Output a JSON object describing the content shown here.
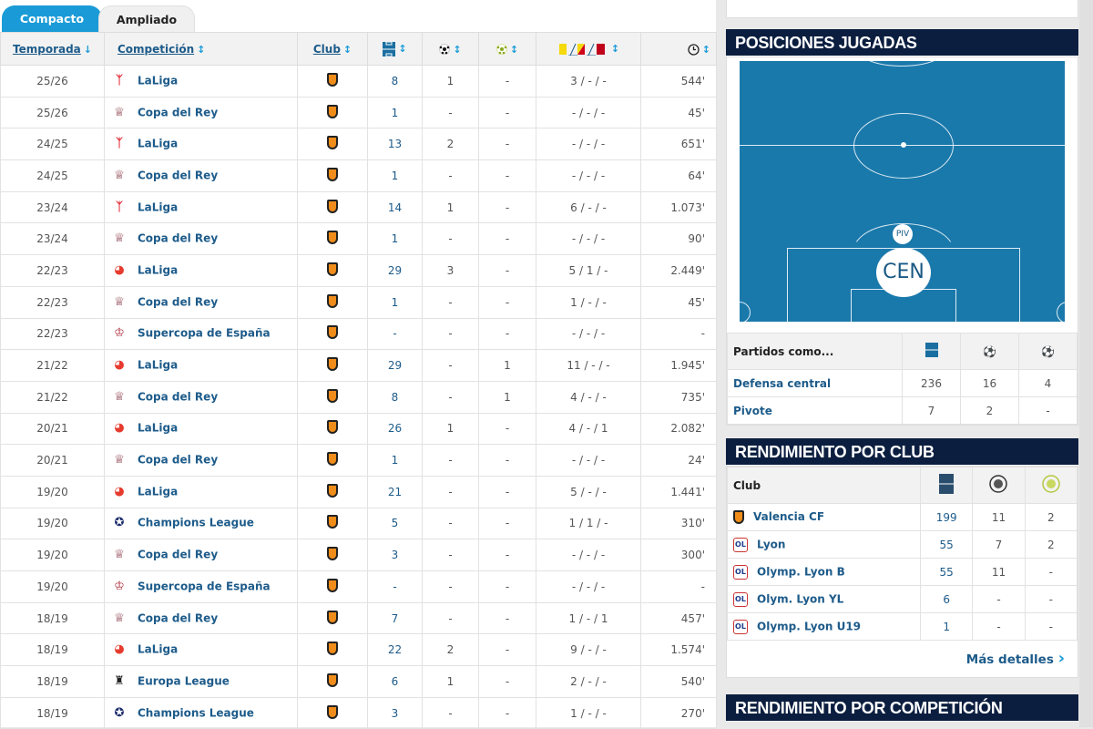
{
  "tabs": {
    "compact": "Compacto",
    "expanded": "Ampliado"
  },
  "columns": {
    "season": "Temporada",
    "competition": "Competición",
    "club": "Club",
    "sort_desc": "↓",
    "sort": "↕"
  },
  "icons": {
    "matches": "pitch-icon",
    "goals": "ball-icon",
    "assists": "assist-ball-icon",
    "cards": "yellow-yellowred-red-cards-icon",
    "minutes": "clock-icon"
  },
  "colors": {
    "accent": "#1a9bd7",
    "header": "#0b1e3f",
    "pitch": "#1a79ab",
    "link": "#1d5b8a"
  },
  "rows": [
    {
      "season": "25/26",
      "comp": "LaLiga",
      "logo": "laliga-new",
      "mp": "8",
      "g": "1",
      "a": "-",
      "cards": "3 / - / -",
      "min": "544'"
    },
    {
      "season": "25/26",
      "comp": "Copa del Rey",
      "logo": "copa",
      "mp": "1",
      "g": "-",
      "a": "-",
      "cards": "- / - / -",
      "min": "45'"
    },
    {
      "season": "24/25",
      "comp": "LaLiga",
      "logo": "laliga-new",
      "mp": "13",
      "g": "2",
      "a": "-",
      "cards": "- / - / -",
      "min": "651'"
    },
    {
      "season": "24/25",
      "comp": "Copa del Rey",
      "logo": "copa",
      "mp": "1",
      "g": "-",
      "a": "-",
      "cards": "- / - / -",
      "min": "64'"
    },
    {
      "season": "23/24",
      "comp": "LaLiga",
      "logo": "laliga-new",
      "mp": "14",
      "g": "1",
      "a": "-",
      "cards": "6 / - / -",
      "min": "1.073'"
    },
    {
      "season": "23/24",
      "comp": "Copa del Rey",
      "logo": "copa",
      "mp": "1",
      "g": "-",
      "a": "-",
      "cards": "- / - / -",
      "min": "90'"
    },
    {
      "season": "22/23",
      "comp": "LaLiga",
      "logo": "laliga",
      "mp": "29",
      "g": "3",
      "a": "-",
      "cards": "5 / 1 / -",
      "min": "2.449'"
    },
    {
      "season": "22/23",
      "comp": "Copa del Rey",
      "logo": "copa",
      "mp": "1",
      "g": "-",
      "a": "-",
      "cards": "1 / - / -",
      "min": "45'"
    },
    {
      "season": "22/23",
      "comp": "Supercopa de España",
      "logo": "supercopa",
      "mp": "-",
      "g": "-",
      "a": "-",
      "cards": "- / - / -",
      "min": "-"
    },
    {
      "season": "21/22",
      "comp": "LaLiga",
      "logo": "laliga",
      "mp": "29",
      "g": "-",
      "a": "1",
      "cards": "11 / - / -",
      "min": "1.945'"
    },
    {
      "season": "21/22",
      "comp": "Copa del Rey",
      "logo": "copa",
      "mp": "8",
      "g": "-",
      "a": "1",
      "cards": "4 / - / -",
      "min": "735'"
    },
    {
      "season": "20/21",
      "comp": "LaLiga",
      "logo": "laliga",
      "mp": "26",
      "g": "1",
      "a": "-",
      "cards": "4 / - / 1",
      "min": "2.082'"
    },
    {
      "season": "20/21",
      "comp": "Copa del Rey",
      "logo": "copa",
      "mp": "1",
      "g": "-",
      "a": "-",
      "cards": "- / - / -",
      "min": "24'"
    },
    {
      "season": "19/20",
      "comp": "LaLiga",
      "logo": "laliga",
      "mp": "21",
      "g": "-",
      "a": "-",
      "cards": "5 / - / -",
      "min": "1.441'"
    },
    {
      "season": "19/20",
      "comp": "Champions League",
      "logo": "ucl",
      "mp": "5",
      "g": "-",
      "a": "-",
      "cards": "1 / 1 / -",
      "min": "310'"
    },
    {
      "season": "19/20",
      "comp": "Copa del Rey",
      "logo": "copa",
      "mp": "3",
      "g": "-",
      "a": "-",
      "cards": "- / - / -",
      "min": "300'"
    },
    {
      "season": "19/20",
      "comp": "Supercopa de España",
      "logo": "supercopa",
      "mp": "-",
      "g": "-",
      "a": "-",
      "cards": "- / - / -",
      "min": "-"
    },
    {
      "season": "18/19",
      "comp": "Copa del Rey",
      "logo": "copa",
      "mp": "7",
      "g": "-",
      "a": "-",
      "cards": "1 / - / 1",
      "min": "457'"
    },
    {
      "season": "18/19",
      "comp": "LaLiga",
      "logo": "laliga",
      "mp": "22",
      "g": "2",
      "a": "-",
      "cards": "9 / - / -",
      "min": "1.574'"
    },
    {
      "season": "18/19",
      "comp": "Europa League",
      "logo": "uel",
      "mp": "6",
      "g": "1",
      "a": "-",
      "cards": "2 / - / -",
      "min": "540'"
    },
    {
      "season": "18/19",
      "comp": "Champions League",
      "logo": "ucl",
      "mp": "3",
      "g": "-",
      "a": "-",
      "cards": "1 / - / -",
      "min": "270'"
    }
  ],
  "positions": {
    "title": "POSICIONES JUGADAS",
    "main": "CEN",
    "secondary": "PIV",
    "table_header": "Partidos como...",
    "rows": [
      {
        "name": "Defensa central",
        "mp": "236",
        "g": "16",
        "a": "4"
      },
      {
        "name": "Pivote",
        "mp": "7",
        "g": "2",
        "a": "-"
      }
    ]
  },
  "by_club": {
    "title": "RENDIMIENTO POR CLUB",
    "header": "Club",
    "rows": [
      {
        "name": "Valencia CF",
        "crest": "valencia",
        "mp": "199",
        "g": "11",
        "a": "2"
      },
      {
        "name": "Lyon",
        "crest": "lyon",
        "mp": "55",
        "g": "7",
        "a": "2"
      },
      {
        "name": "Olymp. Lyon B",
        "crest": "lyon",
        "mp": "55",
        "g": "11",
        "a": "-"
      },
      {
        "name": "Olym. Lyon YL",
        "crest": "lyon",
        "mp": "6",
        "g": "-",
        "a": "-"
      },
      {
        "name": "Olymp. Lyon U19",
        "crest": "lyon",
        "mp": "1",
        "g": "-",
        "a": "-"
      }
    ],
    "more": "Más detalles",
    "more_arrow": "›"
  },
  "by_comp": {
    "title": "RENDIMIENTO POR COMPETICIÓN"
  }
}
